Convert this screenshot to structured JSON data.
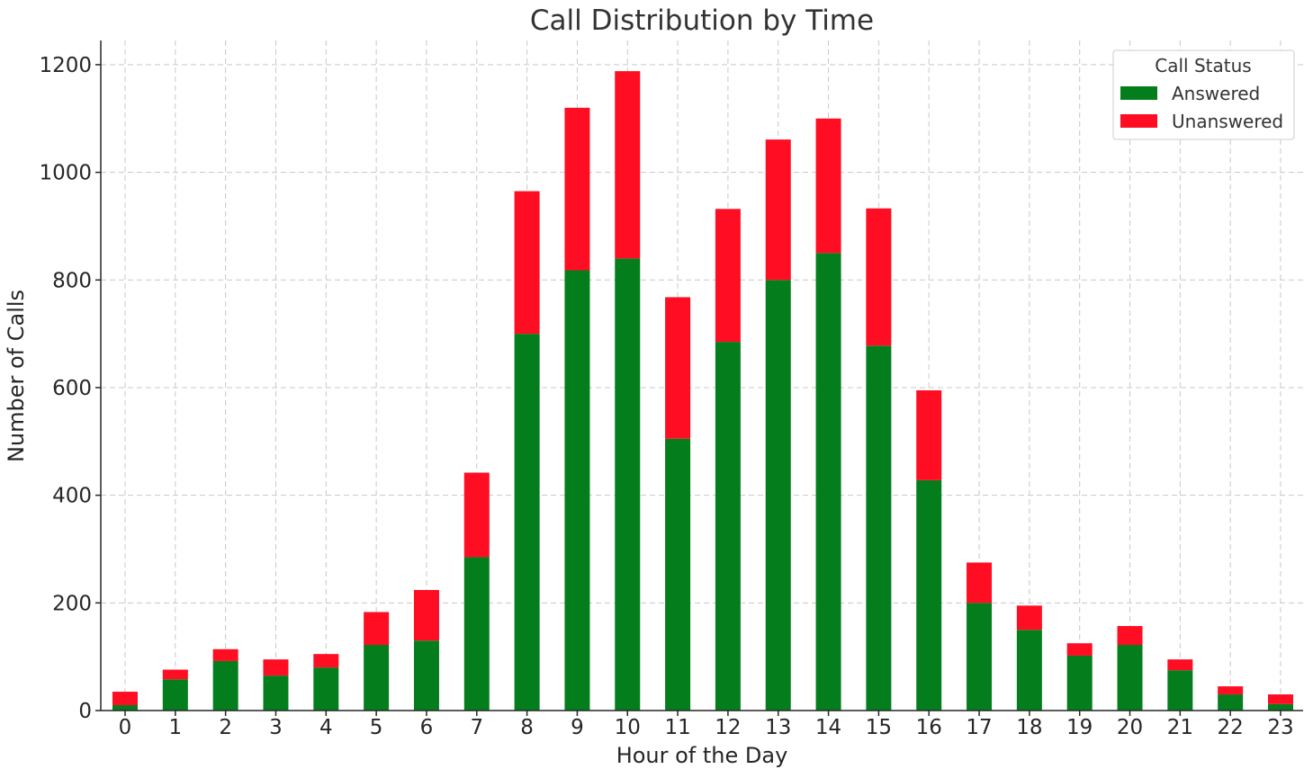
{
  "chart_data": {
    "type": "bar",
    "stacked": true,
    "title": "Call Distribution by Time",
    "xlabel": "Hour of the Day",
    "ylabel": "Number of Calls",
    "categories": [
      "0",
      "1",
      "2",
      "3",
      "4",
      "5",
      "6",
      "7",
      "8",
      "9",
      "10",
      "11",
      "12",
      "13",
      "14",
      "15",
      "16",
      "17",
      "18",
      "19",
      "20",
      "21",
      "22",
      "23"
    ],
    "series": [
      {
        "name": "Answered",
        "color": "#047e1d",
        "values": [
          10,
          58,
          92,
          65,
          80,
          122,
          130,
          285,
          700,
          818,
          840,
          505,
          685,
          800,
          850,
          678,
          428,
          200,
          150,
          102,
          122,
          75,
          30,
          12
        ]
      },
      {
        "name": "Unanswered",
        "color": "#ff0d22",
        "values": [
          25,
          18,
          22,
          30,
          25,
          61,
          94,
          157,
          265,
          302,
          348,
          263,
          247,
          261,
          250,
          255,
          167,
          75,
          45,
          23,
          35,
          20,
          15,
          18
        ]
      }
    ],
    "ylim": [
      0,
      1245
    ],
    "yticks": [
      0,
      200,
      400,
      600,
      800,
      1000,
      1200
    ],
    "grid": true,
    "legend": {
      "title": "Call Status",
      "position": "top-right"
    }
  }
}
